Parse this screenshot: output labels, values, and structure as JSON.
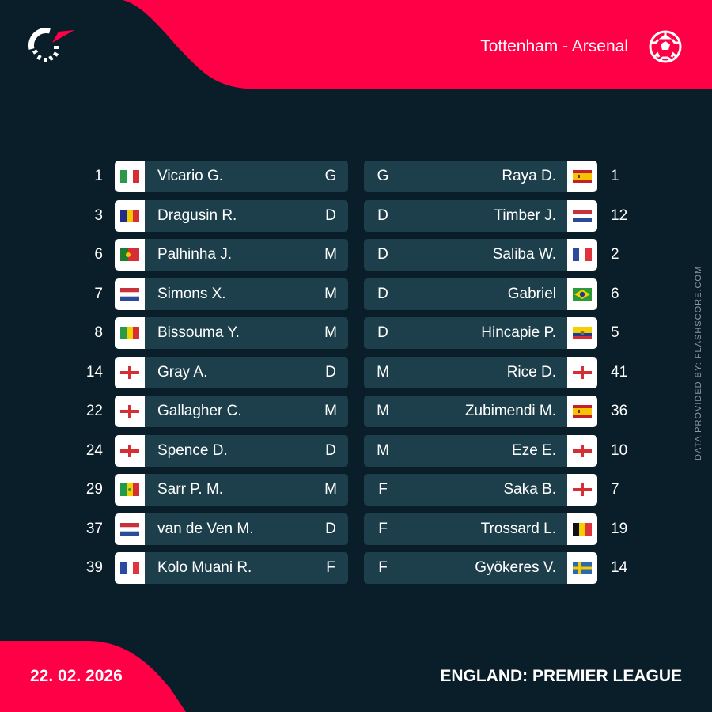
{
  "header": {
    "match": "Tottenham - Arsenal",
    "icon": "soccer-ball-icon"
  },
  "colors": {
    "accent": "#ff0046",
    "background": "#0a1e29",
    "row": "#1d3f4b"
  },
  "home": [
    {
      "num": "1",
      "flag": "italy",
      "name": "Vicario G.",
      "pos": "G"
    },
    {
      "num": "3",
      "flag": "romania",
      "name": "Dragusin R.",
      "pos": "D"
    },
    {
      "num": "6",
      "flag": "portugal",
      "name": "Palhinha J.",
      "pos": "M"
    },
    {
      "num": "7",
      "flag": "netherlands",
      "name": "Simons X.",
      "pos": "M"
    },
    {
      "num": "8",
      "flag": "mali",
      "name": "Bissouma Y.",
      "pos": "M"
    },
    {
      "num": "14",
      "flag": "england",
      "name": "Gray A.",
      "pos": "D"
    },
    {
      "num": "22",
      "flag": "england",
      "name": "Gallagher C.",
      "pos": "M"
    },
    {
      "num": "24",
      "flag": "england",
      "name": "Spence D.",
      "pos": "D"
    },
    {
      "num": "29",
      "flag": "senegal",
      "name": "Sarr P. M.",
      "pos": "M"
    },
    {
      "num": "37",
      "flag": "netherlands",
      "name": "van de Ven M.",
      "pos": "D"
    },
    {
      "num": "39",
      "flag": "france",
      "name": "Kolo Muani R.",
      "pos": "F"
    }
  ],
  "away": [
    {
      "num": "1",
      "flag": "spain",
      "name": "Raya D.",
      "pos": "G"
    },
    {
      "num": "12",
      "flag": "netherlands",
      "name": "Timber J.",
      "pos": "D"
    },
    {
      "num": "2",
      "flag": "france",
      "name": "Saliba W.",
      "pos": "D"
    },
    {
      "num": "6",
      "flag": "brazil",
      "name": "Gabriel",
      "pos": "D"
    },
    {
      "num": "5",
      "flag": "ecuador",
      "name": "Hincapie P.",
      "pos": "D"
    },
    {
      "num": "41",
      "flag": "england",
      "name": "Rice D.",
      "pos": "M"
    },
    {
      "num": "36",
      "flag": "spain",
      "name": "Zubimendi M.",
      "pos": "M"
    },
    {
      "num": "10",
      "flag": "england",
      "name": "Eze E.",
      "pos": "M"
    },
    {
      "num": "7",
      "flag": "england",
      "name": "Saka B.",
      "pos": "F"
    },
    {
      "num": "19",
      "flag": "belgium",
      "name": "Trossard L.",
      "pos": "F"
    },
    {
      "num": "14",
      "flag": "sweden",
      "name": "Gyökeres V.",
      "pos": "F"
    }
  ],
  "footer": {
    "date": "22. 02. 2026",
    "league": "ENGLAND: PREMIER LEAGUE"
  },
  "credit": "DATA PROVIDED BY: FLASHSCORE.COM"
}
